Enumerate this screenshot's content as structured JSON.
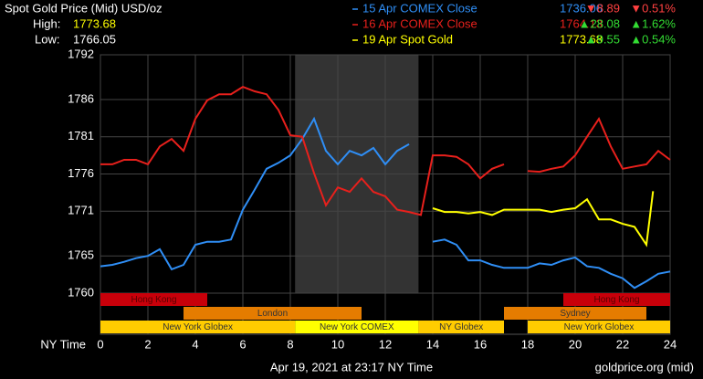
{
  "header": {
    "title": "Spot Gold Price (Mid) USD/oz",
    "high_label": "High:",
    "high": 1773.68,
    "low_label": "Low:",
    "low": 1766.05
  },
  "chart_data": {
    "type": "line",
    "xlabel": "NY Time",
    "x": [
      0,
      0.5,
      1,
      1.5,
      2,
      2.5,
      3,
      3.5,
      4,
      4.5,
      5,
      5.5,
      6,
      6.5,
      7,
      7.5,
      8,
      8.5,
      9,
      9.5,
      10,
      10.5,
      11,
      11.5,
      12,
      12.5,
      13,
      13.5,
      14,
      14.5,
      15,
      15.5,
      16,
      16.5,
      17,
      17.5,
      18,
      18.5,
      19,
      19.5,
      20,
      20.5,
      21,
      21.5,
      22,
      22.5,
      23,
      23.5,
      24
    ],
    "xlim": [
      0,
      24
    ],
    "xticks": [
      0,
      2,
      4,
      6,
      8,
      10,
      12,
      14,
      16,
      18,
      20,
      22,
      24
    ],
    "ylim": [
      1760,
      1792
    ],
    "yticks": [
      1760,
      1765,
      1771,
      1776,
      1781,
      1786,
      1792
    ],
    "grid": true,
    "shade": [
      8.2,
      13.4
    ],
    "series": [
      {
        "name": "15 Apr COMEX Close",
        "color": "#2f8ef5",
        "close": 1736.06,
        "change": "▼8.89",
        "change_pct": "▼0.51%",
        "change_color": "#ff4040",
        "values": [
          1763.6,
          1763.8,
          1764.2,
          1764.7,
          1765.0,
          1765.9,
          1763.2,
          1763.8,
          1766.5,
          1766.9,
          1766.9,
          1767.2,
          1771.2,
          1773.9,
          1776.7,
          1777.5,
          1778.5,
          1780.7,
          1783.4,
          1779.1,
          1777.3,
          1779.1,
          1778.5,
          1779.5,
          1777.3,
          1779.1,
          1780.0,
          null,
          1766.9,
          1767.2,
          1766.5,
          1764.4,
          1764.4,
          1763.8,
          1763.4,
          1763.4,
          1763.4,
          1764.0,
          1763.8,
          1764.4,
          1764.8,
          1763.6,
          1763.4,
          1762.6,
          1762.0,
          1760.7,
          1761.6,
          1762.6,
          1762.9
        ]
      },
      {
        "name": "16 Apr COMEX Close",
        "color": "#e8201c",
        "close": 1764.13,
        "change": "▲28.08",
        "change_pct": "▲1.62%",
        "change_color": "#33dd33",
        "values": [
          1777.3,
          1777.3,
          1777.9,
          1777.9,
          1777.3,
          1779.7,
          1780.7,
          1779.1,
          1783.4,
          1785.9,
          1786.7,
          1786.7,
          1787.7,
          1787.1,
          1786.7,
          1784.6,
          1781.2,
          1781.0,
          1776.1,
          1771.8,
          1774.2,
          1773.6,
          1775.4,
          1773.6,
          1773.0,
          1771.2,
          1770.9,
          1770.5,
          1778.5,
          1778.5,
          1778.3,
          1777.3,
          1775.4,
          1776.7,
          1777.3,
          null,
          1776.4,
          1776.3,
          1776.7,
          1777.0,
          1778.5,
          1781.0,
          1783.4,
          1779.7,
          1776.7,
          1777.0,
          1777.3,
          1779.1,
          1777.9
        ]
      },
      {
        "name": "19 Apr Spot Gold",
        "color": "#ffff00",
        "close": 1773.68,
        "change": "▲9.55",
        "change_pct": "▲0.54%",
        "change_color": "#33dd33",
        "x": [
          14,
          14.5,
          15,
          15.5,
          16,
          16.5,
          17,
          17.5,
          18,
          18.5,
          19,
          19.5,
          20,
          20.5,
          21,
          21.5,
          22,
          22.5,
          23,
          23.28
        ],
        "values": [
          1771.4,
          1770.9,
          1770.9,
          1770.7,
          1770.9,
          1770.5,
          1771.2,
          1771.2,
          1771.2,
          1771.2,
          1770.9,
          1771.2,
          1771.4,
          1772.6,
          1769.9,
          1769.9,
          1769.3,
          1768.9,
          1766.5,
          1773.68
        ]
      }
    ],
    "sessions": [
      [
        {
          "label": "Hong Kong",
          "start": 0,
          "end": 4.5,
          "color": "#c8000a"
        },
        {
          "label": "Hong Kong",
          "start": 19.5,
          "end": 24,
          "color": "#c8000a"
        }
      ],
      [
        {
          "label": "London",
          "start": 3.5,
          "end": 11,
          "color": "#e57c00"
        },
        {
          "label": "Sydney",
          "start": 17,
          "end": 23,
          "color": "#e57c00"
        }
      ],
      [
        {
          "label": "New York Globex",
          "start": 0,
          "end": 8.2,
          "color": "#ffcc00"
        },
        {
          "label": "New York COMEX",
          "start": 8.2,
          "end": 13.4,
          "color": "#ffff00"
        },
        {
          "label": "NY Globex",
          "start": 13.4,
          "end": 17,
          "color": "#ffcc00"
        },
        {
          "label": "New York Globex",
          "start": 18,
          "end": 24,
          "color": "#ffcc00"
        }
      ]
    ]
  },
  "footer": {
    "timestamp": "Apr 19, 2021 at 23:17 NY Time",
    "source": "goldprice.org (mid)"
  }
}
